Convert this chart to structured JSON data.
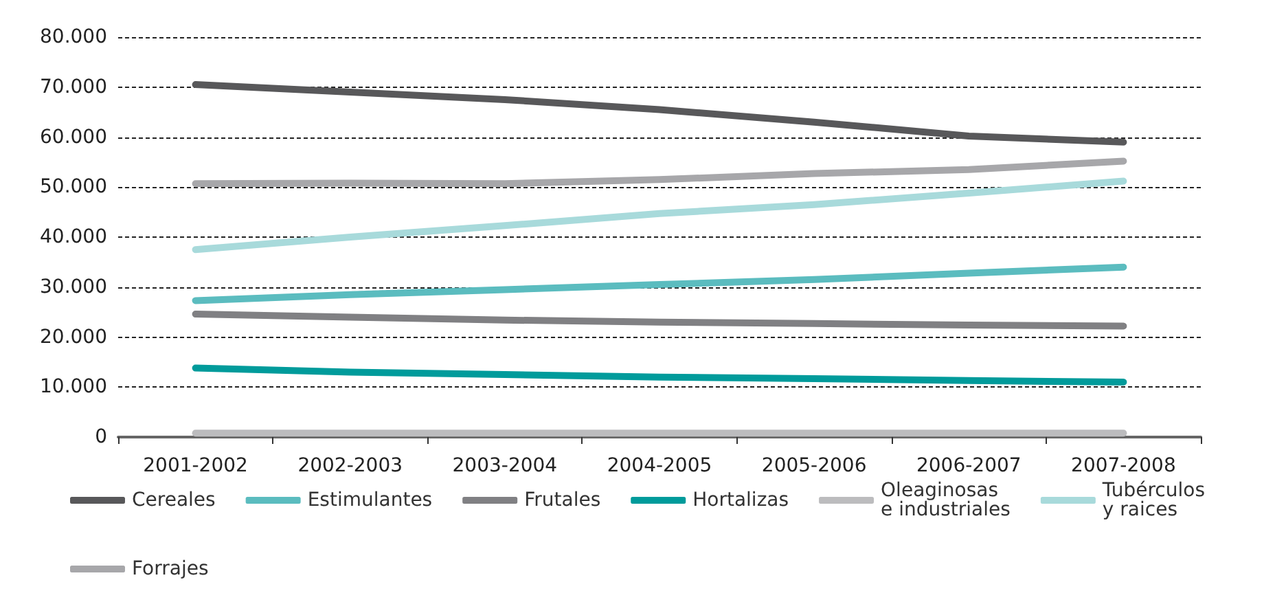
{
  "chart_data": {
    "type": "line",
    "categories": [
      "2001-2002",
      "2002-2003",
      "2003-2004",
      "2004-2005",
      "2005-2006",
      "2006-2007",
      "2007-2008"
    ],
    "ylim": [
      0,
      80000
    ],
    "yticks": [
      {
        "value": 0,
        "label": "0"
      },
      {
        "value": 10000,
        "label": "10.000"
      },
      {
        "value": 20000,
        "label": "20.000"
      },
      {
        "value": 30000,
        "label": "30.000"
      },
      {
        "value": 40000,
        "label": "40.000"
      },
      {
        "value": 50000,
        "label": "50.000"
      },
      {
        "value": 60000,
        "label": "60.000"
      },
      {
        "value": 70000,
        "label": "70.000"
      },
      {
        "value": 80000,
        "label": "80.000"
      }
    ],
    "grid": "y",
    "legend": "bottom",
    "marker": "none",
    "line_style": "solid",
    "series": [
      {
        "name": "Cereales",
        "color": "#58585a",
        "values": [
          70500,
          69000,
          67500,
          65500,
          63000,
          60200,
          59000
        ]
      },
      {
        "name": "Estimulantes",
        "color": "#5bbcbf",
        "values": [
          27300,
          28500,
          29500,
          30500,
          31500,
          32800,
          34000
        ]
      },
      {
        "name": "Frutales",
        "color": "#808083",
        "values": [
          24600,
          24000,
          23400,
          23000,
          22700,
          22400,
          22200
        ]
      },
      {
        "name": "Hortalizas",
        "color": "#009b9b",
        "values": [
          13800,
          13000,
          12500,
          12000,
          11700,
          11300,
          11000
        ]
      },
      {
        "name": "Oleaginosas\ne industriales",
        "color": "#bcbcbe",
        "values": [
          800,
          800,
          800,
          800,
          800,
          800,
          800
        ]
      },
      {
        "name": "Tubérculos\ny raices",
        "color": "#a8dadb",
        "values": [
          37500,
          40000,
          42300,
          44700,
          46500,
          48800,
          51200
        ]
      },
      {
        "name": "Forrajes",
        "color": "#a7a7aa",
        "values": [
          50700,
          50800,
          50700,
          51500,
          52700,
          53500,
          55200
        ]
      }
    ]
  }
}
